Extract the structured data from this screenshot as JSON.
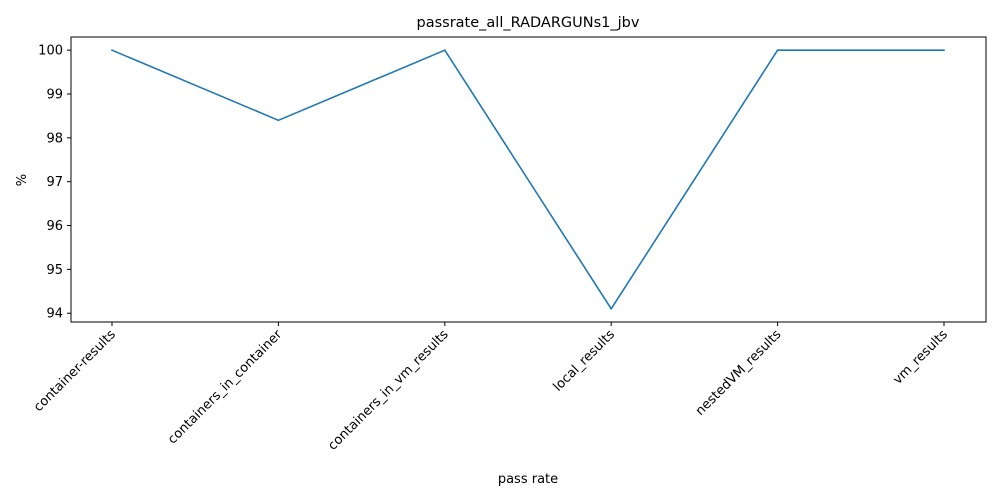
{
  "chart_data": {
    "type": "line",
    "title": "passrate_all_RADARGUNs1_jbv",
    "xlabel": "pass rate",
    "ylabel": "%",
    "categories": [
      "container-results",
      "containers_in_container",
      "containers_in_vm_results",
      "local_results",
      "nestedVM_results",
      "vm_results"
    ],
    "series": [
      {
        "values": [
          100,
          98.4,
          100,
          94.1,
          100,
          100
        ],
        "color": "#1f77b4"
      }
    ],
    "ylim": [
      93.8,
      100.3
    ],
    "yticks": [
      94,
      95,
      96,
      97,
      98,
      99,
      100
    ],
    "grid": false,
    "legend": "none"
  }
}
